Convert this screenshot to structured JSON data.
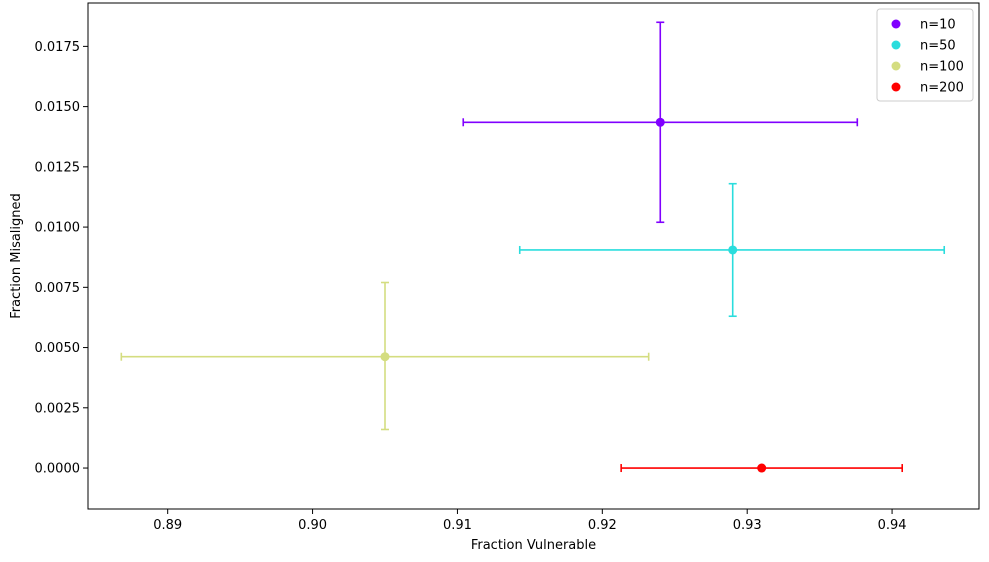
{
  "chart_data": {
    "type": "scatter",
    "xlabel": "Fraction Vulnerable",
    "ylabel": "Fraction Misaligned",
    "xlim": [
      0.8845,
      0.946
    ],
    "ylim": [
      -0.0017,
      0.0193
    ],
    "x_ticks": [
      0.89,
      0.9,
      0.91,
      0.92,
      0.93,
      0.94
    ],
    "x_tick_labels": [
      "0.89",
      "0.90",
      "0.91",
      "0.92",
      "0.93",
      "0.94"
    ],
    "y_ticks": [
      0.0,
      0.0025,
      0.005,
      0.0075,
      0.01,
      0.0125,
      0.015,
      0.0175
    ],
    "y_tick_labels": [
      "0.0000",
      "0.0025",
      "0.0050",
      "0.0075",
      "0.0100",
      "0.0125",
      "0.0150",
      "0.0175"
    ],
    "grid": false,
    "legend_position": "top-right",
    "series": [
      {
        "name": "n=10",
        "color": "#8000ff",
        "x": 0.924,
        "y": 0.01435,
        "x_err": [
          0.9104,
          0.9376
        ],
        "y_err": [
          0.0102,
          0.0185
        ]
      },
      {
        "name": "n=50",
        "color": "#2adddd",
        "x": 0.929,
        "y": 0.00905,
        "x_err": [
          0.9143,
          0.9436
        ],
        "y_err": [
          0.0063,
          0.0118
        ]
      },
      {
        "name": "n=100",
        "color": "#d4dd80",
        "x": 0.905,
        "y": 0.00462,
        "x_err": [
          0.8868,
          0.9232
        ],
        "y_err": [
          0.0016,
          0.0077
        ]
      },
      {
        "name": "n=200",
        "color": "#ff0000",
        "x": 0.931,
        "y": 0.0,
        "x_err": [
          0.9213,
          0.9407
        ],
        "y_err": [
          0.0,
          0.0
        ]
      }
    ]
  }
}
